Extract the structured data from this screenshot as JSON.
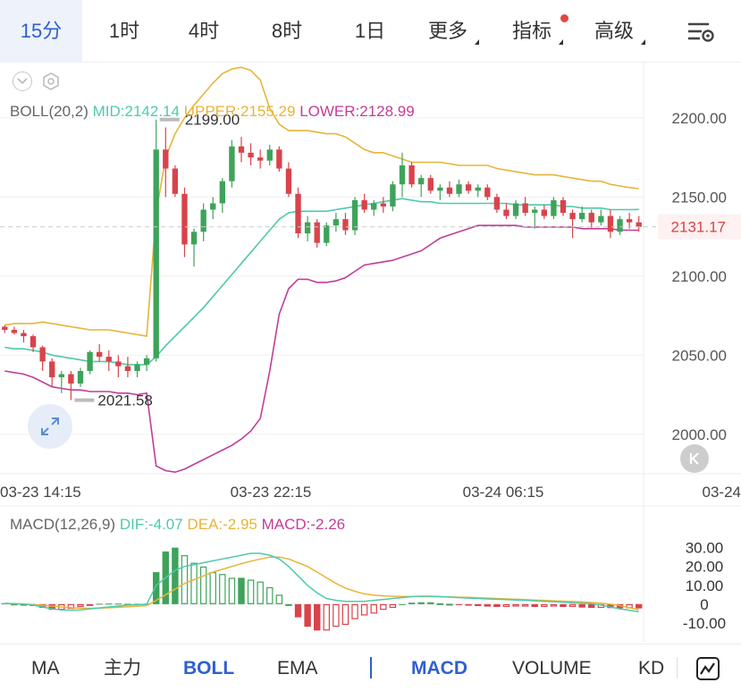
{
  "tabs": [
    {
      "label": "15分",
      "active": true
    },
    {
      "label": "1时"
    },
    {
      "label": "4时"
    },
    {
      "label": "8时"
    },
    {
      "label": "1日"
    },
    {
      "label": "更多",
      "dropdown": true
    },
    {
      "label": "指标",
      "dropdown": true,
      "badge": true
    },
    {
      "label": "高级",
      "dropdown": true
    }
  ],
  "boll_legend": {
    "name": "BOLL(20,2)",
    "mid": "MID:2142.14",
    "upper": "UPPER:2155.29",
    "lower": "LOWER:2128.99"
  },
  "macd_legend": {
    "name": "MACD(12,26,9)",
    "dif": "DIF:-4.07",
    "dea": "DEA:-2.95",
    "macd": "MACD:-2.26"
  },
  "colors": {
    "up": "#3ea35a",
    "down": "#d9434b",
    "mid": "#4fc9ab",
    "upper": "#e6b53a",
    "lower": "#c23d98",
    "accent": "#2f5fd0"
  },
  "bottom_tabs": [
    {
      "label": "MA"
    },
    {
      "label": "主力"
    },
    {
      "label": "BOLL",
      "active": true
    },
    {
      "label": "EMA"
    },
    {
      "label": "MACD",
      "active": true
    },
    {
      "label": "VOLUME"
    },
    {
      "label": "KD"
    }
  ],
  "icons": {
    "settings": "chart-settings-icon",
    "collapse": "chevron-down-icon",
    "gear": "gear-icon",
    "expand": "expand-icon",
    "jump": "jump-to-latest-icon",
    "draw": "drawing-tool-icon"
  },
  "chart_data": {
    "type": "candlestick",
    "main": {
      "y_ticks": [
        2200,
        2150,
        2100,
        2050,
        2000
      ],
      "y_tick_labels": [
        "2200.00",
        "2150.00",
        "2100.00",
        "2050.00",
        "2000.00"
      ],
      "ylim": [
        1975,
        2235
      ],
      "x_tick_labels": [
        "03-23 14:15",
        "03-23 22:15",
        "03-24 06:15",
        "03-24"
      ],
      "last_price": 2131.17,
      "last_price_label": "2131.17",
      "high_label": "2199.00",
      "low_label": "2021.58",
      "high_value": 2199.0,
      "low_value": 2021.58,
      "high_index": 16,
      "low_index": 7,
      "candles": [
        [
          2068,
          2069,
          2064,
          2066
        ],
        [
          2066,
          2068,
          2063,
          2064
        ],
        [
          2064,
          2066,
          2058,
          2062
        ],
        [
          2062,
          2063,
          2052,
          2055
        ],
        [
          2055,
          2056,
          2040,
          2046
        ],
        [
          2046,
          2048,
          2030,
          2036
        ],
        [
          2036,
          2040,
          2026,
          2038
        ],
        [
          2038,
          2040,
          2021.58,
          2032
        ],
        [
          2032,
          2042,
          2030,
          2040
        ],
        [
          2040,
          2053,
          2038,
          2052
        ],
        [
          2052,
          2057,
          2046,
          2049
        ],
        [
          2049,
          2053,
          2040,
          2046
        ],
        [
          2046,
          2050,
          2036,
          2043
        ],
        [
          2043,
          2049,
          2036,
          2040
        ],
        [
          2040,
          2046,
          2036,
          2044
        ],
        [
          2044,
          2050,
          2040,
          2048
        ],
        [
          2048,
          2199,
          2046,
          2180
        ],
        [
          2180,
          2194,
          2150,
          2168
        ],
        [
          2168,
          2170,
          2150,
          2152
        ],
        [
          2152,
          2156,
          2112,
          2120
        ],
        [
          2120,
          2130,
          2106,
          2128
        ],
        [
          2128,
          2146,
          2122,
          2142
        ],
        [
          2142,
          2150,
          2136,
          2146
        ],
        [
          2146,
          2162,
          2140,
          2160
        ],
        [
          2160,
          2186,
          2156,
          2182
        ],
        [
          2182,
          2188,
          2172,
          2178
        ],
        [
          2178,
          2184,
          2170,
          2175
        ],
        [
          2175,
          2180,
          2168,
          2173
        ],
        [
          2173,
          2183,
          2170,
          2180
        ],
        [
          2180,
          2182,
          2166,
          2168
        ],
        [
          2168,
          2172,
          2150,
          2152
        ],
        [
          2152,
          2156,
          2124,
          2127
        ],
        [
          2127,
          2138,
          2122,
          2134
        ],
        [
          2134,
          2136,
          2118,
          2121
        ],
        [
          2121,
          2134,
          2119,
          2132
        ],
        [
          2132,
          2140,
          2128,
          2136
        ],
        [
          2136,
          2140,
          2126,
          2129
        ],
        [
          2129,
          2150,
          2126,
          2148
        ],
        [
          2148,
          2152,
          2140,
          2142
        ],
        [
          2142,
          2148,
          2138,
          2146
        ],
        [
          2146,
          2150,
          2140,
          2144
        ],
        [
          2144,
          2160,
          2141,
          2158
        ],
        [
          2158,
          2178,
          2150,
          2170
        ],
        [
          2170,
          2172,
          2156,
          2158
        ],
        [
          2158,
          2164,
          2150,
          2162
        ],
        [
          2162,
          2164,
          2152,
          2154
        ],
        [
          2154,
          2158,
          2148,
          2156
        ],
        [
          2156,
          2160,
          2150,
          2152
        ],
        [
          2152,
          2161,
          2150,
          2158
        ],
        [
          2158,
          2160,
          2152,
          2154
        ],
        [
          2154,
          2158,
          2150,
          2156
        ],
        [
          2156,
          2158,
          2148,
          2150
        ],
        [
          2150,
          2152,
          2140,
          2142
        ],
        [
          2142,
          2146,
          2136,
          2138
        ],
        [
          2138,
          2148,
          2136,
          2146
        ],
        [
          2146,
          2150,
          2138,
          2140
        ],
        [
          2140,
          2144,
          2130,
          2142
        ],
        [
          2142,
          2145,
          2136,
          2138
        ],
        [
          2138,
          2150,
          2136,
          2148
        ],
        [
          2148,
          2150,
          2138,
          2140
        ],
        [
          2140,
          2142,
          2124,
          2136
        ],
        [
          2136,
          2144,
          2134,
          2140
        ],
        [
          2140,
          2142,
          2130,
          2134
        ],
        [
          2134,
          2142,
          2132,
          2138
        ],
        [
          2138,
          2142,
          2124,
          2128
        ],
        [
          2128,
          2138,
          2126,
          2136
        ],
        [
          2136,
          2140,
          2130,
          2134
        ],
        [
          2134,
          2138,
          2128,
          2131.17
        ]
      ],
      "boll_mid": [
        2055,
        2054,
        2054,
        2053,
        2052,
        2050,
        2049,
        2048,
        2047,
        2046,
        2046,
        2046,
        2045,
        2044,
        2044,
        2044,
        2049,
        2056,
        2062,
        2068,
        2074,
        2080,
        2087,
        2094,
        2101,
        2108,
        2115,
        2122,
        2129,
        2136,
        2140,
        2141,
        2141,
        2141,
        2141,
        2142,
        2143,
        2144,
        2145,
        2146,
        2147,
        2148,
        2149,
        2148,
        2147,
        2147,
        2146,
        2146,
        2146,
        2146,
        2146,
        2146,
        2146,
        2146,
        2145,
        2145,
        2145,
        2145,
        2145,
        2144,
        2144,
        2143,
        2143,
        2143,
        2142,
        2142,
        2142,
        2142.14
      ],
      "boll_upper": [
        2069,
        2070,
        2070,
        2070,
        2071,
        2070,
        2069,
        2068,
        2067,
        2066,
        2066,
        2066,
        2065,
        2064,
        2063,
        2062,
        2140,
        2175,
        2190,
        2200,
        2208,
        2215,
        2222,
        2228,
        2231,
        2232,
        2230,
        2224,
        2206,
        2196,
        2192,
        2192,
        2192,
        2191,
        2190,
        2190,
        2188,
        2184,
        2180,
        2178,
        2178,
        2176,
        2174,
        2172,
        2172,
        2172,
        2172,
        2171,
        2170,
        2170,
        2170,
        2170,
        2168,
        2167,
        2166,
        2165,
        2164,
        2164,
        2164,
        2163,
        2162,
        2161,
        2160,
        2160,
        2158,
        2157,
        2156,
        2155.29
      ],
      "boll_lower": [
        2040,
        2039,
        2038,
        2036,
        2033,
        2030,
        2029,
        2028,
        2028,
        2027,
        2027,
        2027,
        2026,
        2026,
        2025,
        2026,
        1980,
        1977,
        1976,
        1978,
        1981,
        1984,
        1987,
        1990,
        1993,
        1997,
        2002,
        2010,
        2040,
        2076,
        2092,
        2098,
        2098,
        2096,
        2096,
        2097,
        2099,
        2103,
        2107,
        2108,
        2109,
        2110,
        2112,
        2114,
        2116,
        2120,
        2124,
        2126,
        2128,
        2130,
        2132,
        2132,
        2132,
        2132,
        2132,
        2131,
        2131,
        2131,
        2131,
        2131,
        2131,
        2130,
        2130,
        2130,
        2130,
        2129,
        2129,
        2128.99
      ]
    },
    "macd": {
      "y_ticks": [
        30,
        20,
        10,
        0,
        -10
      ],
      "y_tick_labels": [
        "30.00",
        "20.00",
        "10.00",
        "0",
        "-10.00"
      ],
      "ylim": [
        -20,
        36
      ],
      "hist": [
        0.5,
        0.3,
        0.1,
        -1,
        -2,
        -3,
        -3,
        -2.5,
        -1.5,
        -0.5,
        0.2,
        0.3,
        0.3,
        0.2,
        0.2,
        0.3,
        17,
        28,
        30,
        26,
        22,
        20,
        17,
        16,
        14,
        14,
        13,
        12,
        9,
        5,
        0,
        -7,
        -12,
        -14,
        -14,
        -12,
        -11,
        -8,
        -6,
        -5,
        -3,
        -2,
        0,
        0.8,
        1,
        1,
        0.5,
        0.2,
        -0.5,
        -0.8,
        -1,
        -1.3,
        -1.5,
        -1.5,
        -1.3,
        -1.3,
        -1.5,
        -1.5,
        -1.3,
        -1.5,
        -1.5,
        -1.8,
        -2,
        -2,
        -2.1,
        -2.2,
        -2.2,
        -2.26
      ],
      "dif": [
        0.5,
        0.3,
        0,
        -0.5,
        -1.5,
        -2.5,
        -3,
        -3.2,
        -3,
        -2.5,
        -2,
        -1.5,
        -1,
        -0.5,
        -0.3,
        0,
        10,
        14,
        18,
        20,
        21,
        22,
        23,
        24,
        25,
        26,
        27,
        27,
        26,
        24,
        20,
        15,
        10,
        6,
        3,
        2,
        1.5,
        1.5,
        1.5,
        2,
        2.5,
        3,
        3.5,
        4,
        4.2,
        4.2,
        4,
        3.8,
        3.5,
        3.2,
        3,
        2.8,
        2.6,
        2.4,
        2.2,
        2,
        1.8,
        1.5,
        1.3,
        1,
        0.8,
        0.5,
        0.2,
        -0.5,
        -1.5,
        -2.5,
        -3.3,
        -4.07
      ],
      "dea": [
        0.2,
        0.2,
        0.1,
        -0.2,
        -0.6,
        -1,
        -1.5,
        -1.9,
        -2.1,
        -2.2,
        -2.1,
        -1.9,
        -1.7,
        -1.4,
        -1.1,
        -0.8,
        2,
        5,
        8,
        11,
        13,
        15,
        17,
        18.5,
        20,
        21.5,
        22.8,
        24,
        25,
        25,
        24,
        22,
        20,
        17,
        14,
        11,
        8.5,
        6.8,
        5.5,
        4.8,
        4.4,
        4.2,
        4.1,
        4,
        4,
        4,
        3.9,
        3.8,
        3.7,
        3.6,
        3.4,
        3.2,
        3,
        2.8,
        2.6,
        2.4,
        2.2,
        2,
        1.8,
        1.6,
        1.4,
        1.2,
        0.9,
        0.5,
        0,
        -0.8,
        -1.9,
        -2.95
      ]
    }
  }
}
